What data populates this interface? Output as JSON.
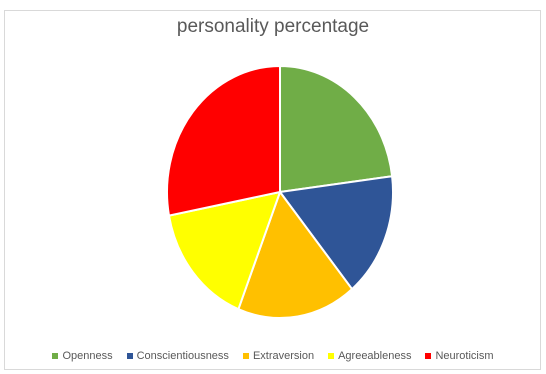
{
  "chart_data": {
    "type": "pie",
    "title": "personality percentage",
    "categories": [
      "Openness",
      "Conscientiousness",
      "Extraversion",
      "Agreeableness",
      "Neuroticism"
    ],
    "values": [
      23,
      16,
      17,
      16,
      28
    ],
    "colors": [
      "#70ad47",
      "#2f5597",
      "#ffc000",
      "#ffff00",
      "#ff0000"
    ],
    "legend": "bottom"
  }
}
